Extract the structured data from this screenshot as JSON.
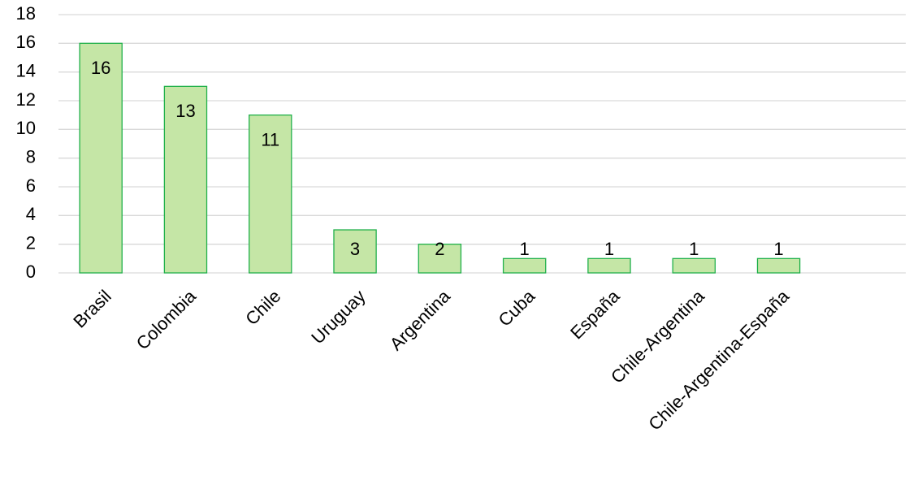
{
  "chart_data": {
    "type": "bar",
    "categories": [
      "Brasil",
      "Colombia",
      "Chile",
      "Uruguay",
      "Argentina",
      "Cuba",
      "España",
      "Chile-Argentina",
      "Chile-Argentina-España",
      null
    ],
    "values": [
      16,
      13,
      11,
      3,
      2,
      1,
      1,
      1,
      1,
      null
    ],
    "color": "#c5e6a6",
    "edge_color": "#22b14c",
    "ylim": [
      0,
      18
    ],
    "yticks": [
      0,
      2,
      4,
      6,
      8,
      10,
      12,
      14,
      16,
      18
    ],
    "grid": true,
    "data_labels": true
  }
}
